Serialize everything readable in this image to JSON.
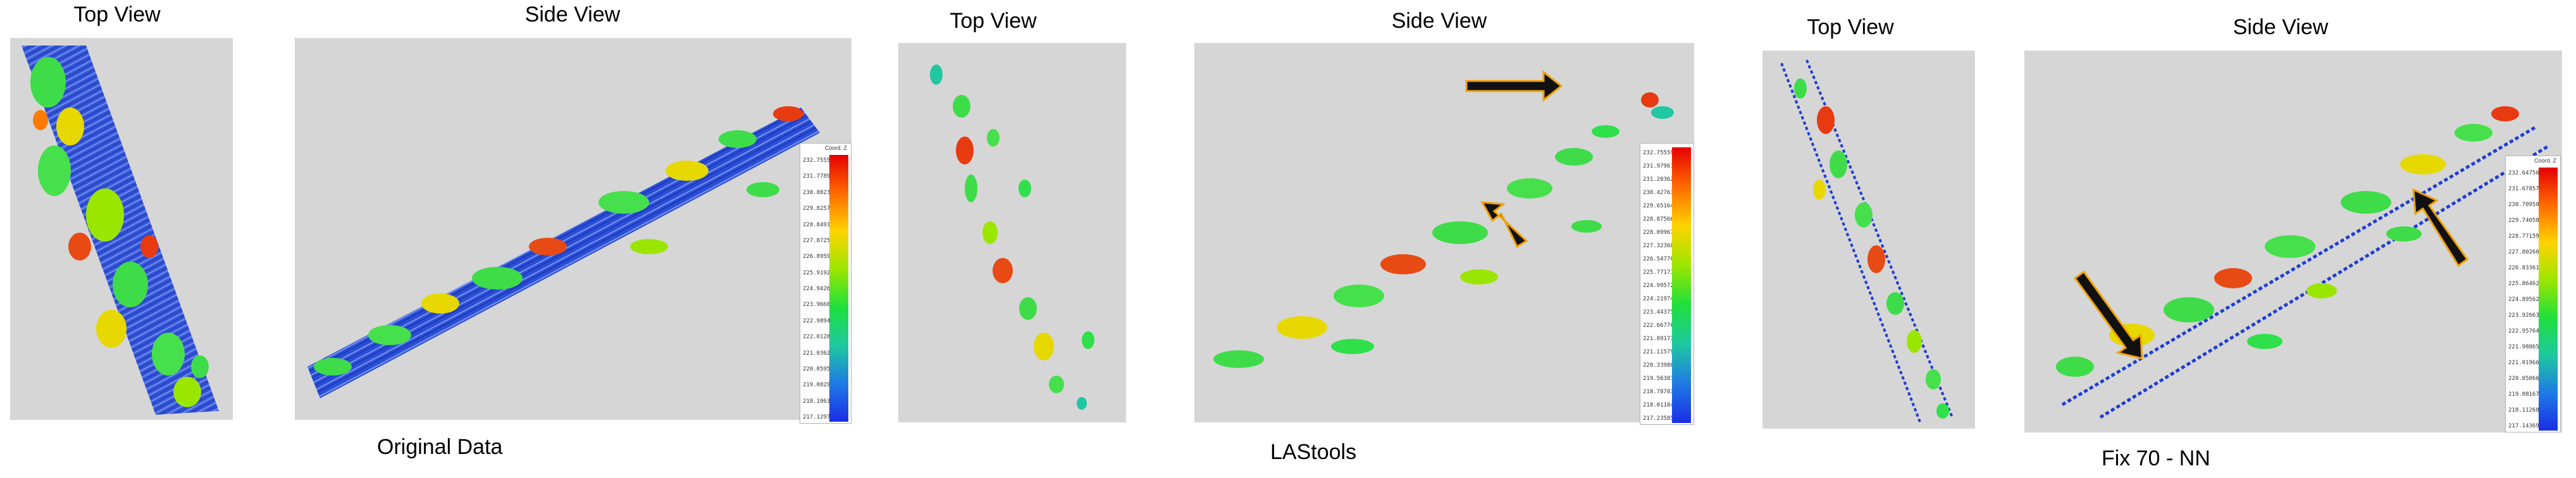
{
  "groups": [
    {
      "top_view_label": "Top View",
      "side_view_label": "Side View",
      "caption": "Original Data"
    },
    {
      "top_view_label": "Top View",
      "side_view_label": "Side View",
      "caption": "LAStools"
    },
    {
      "top_view_label": "Top View",
      "side_view_label": "Side View",
      "caption": "Fix 70 - NN"
    }
  ],
  "colorbar_title": "Coord. Z",
  "colorbars": [
    {
      "ticks": [
        "232.755597",
        "231.778981",
        "230.802365",
        "229.825749",
        "228.849133",
        "227.872517",
        "226.895901",
        "225.919285",
        "224.942669",
        "223.966053",
        "222.989437",
        "222.012821",
        "221.036205",
        "220.059589",
        "219.082973",
        "218.106357",
        "217.129741"
      ]
    },
    {
      "ticks": [
        "232.755597",
        "231.979610",
        "231.203623",
        "230.427636",
        "229.651649",
        "228.875662",
        "228.099675",
        "227.323688",
        "226.547701",
        "225.771714",
        "224.995727",
        "224.219740",
        "223.443753",
        "222.667766",
        "221.891779",
        "221.115792",
        "220.339805",
        "219.563818",
        "218.787831",
        "218.011844",
        "217.235857"
      ]
    },
    {
      "ticks": [
        "232.647564",
        "231.678572",
        "230.709580",
        "229.740588",
        "228.771596",
        "227.802604",
        "226.833612",
        "225.864620",
        "224.895628",
        "223.926636",
        "222.957644",
        "221.988652",
        "221.019660",
        "220.050668",
        "219.081676",
        "218.112684",
        "217.143692"
      ]
    }
  ],
  "icons": [
    "black-arrow-icon"
  ],
  "colors": {
    "panel_background": "#d6d6d6",
    "ground_points": "#1f3fd0",
    "vegetation_low": "#2fe04a",
    "vegetation_mid": "#e8e000",
    "vegetation_high": "#e83a10",
    "arrow_fill": "#111111",
    "arrow_outline": "#f2a100"
  }
}
